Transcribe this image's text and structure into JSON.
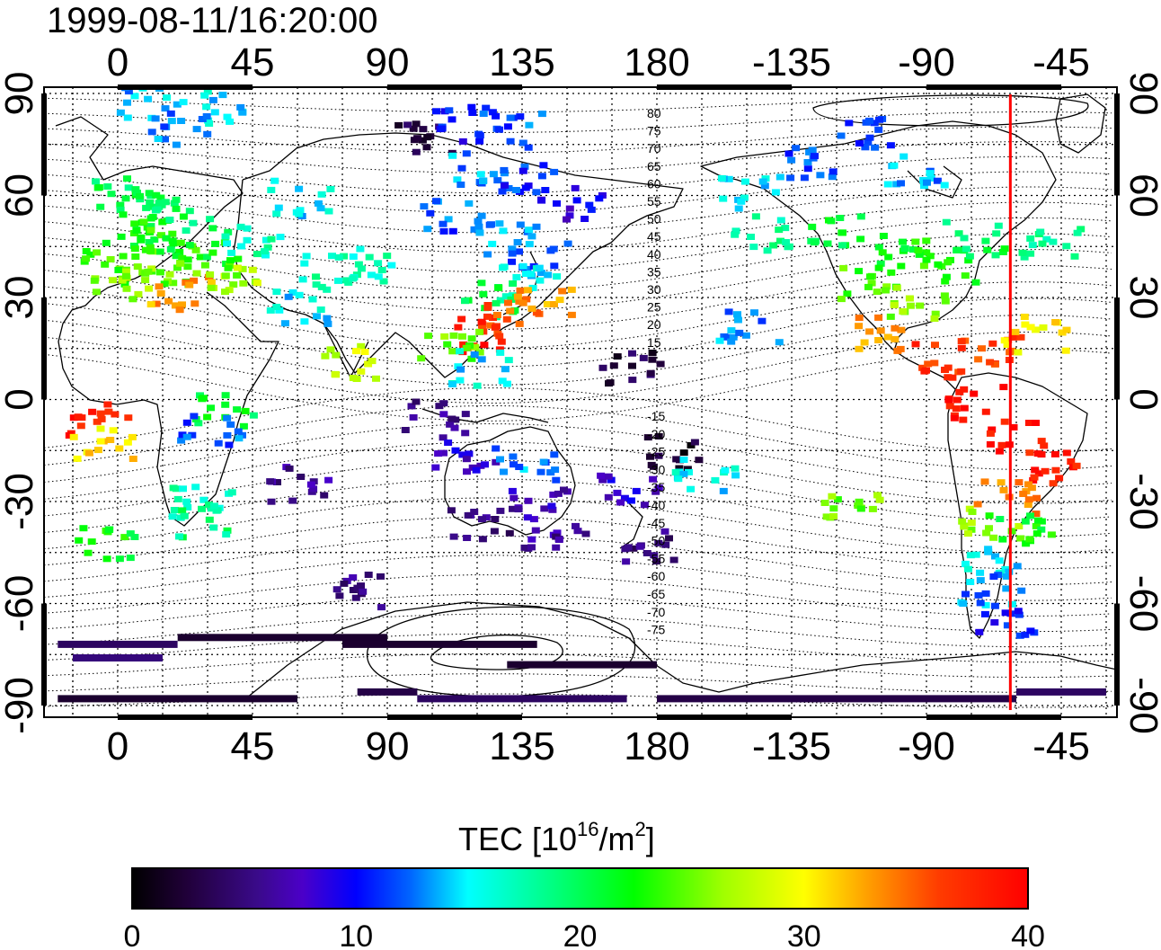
{
  "title": "1999-08-11/16:20:00",
  "axes": {
    "x_ticks": [
      "0",
      "45",
      "90",
      "135",
      "180",
      "-135",
      "-90",
      "-45"
    ],
    "y_ticks_left": [
      "90",
      "60",
      "30",
      "0",
      "-30",
      "-60",
      "-90"
    ],
    "y_ticks_right": [
      "90",
      "60",
      "30",
      "0",
      "-30",
      "-60",
      "-90"
    ]
  },
  "contour_labels_north": [
    "80",
    "75",
    "70",
    "65",
    "60",
    "55",
    "50",
    "45",
    "40",
    "35",
    "30",
    "25",
    "20",
    "15"
  ],
  "contour_labels_south": [
    "-15",
    "-20",
    "-25",
    "-30",
    "-35",
    "-40",
    "-45",
    "-50",
    "-55",
    "-60",
    "-65",
    "-70",
    "-75"
  ],
  "colorbar": {
    "label_main": "TEC  [10",
    "label_sup1": "16",
    "label_mid": "/m",
    "label_sup2": "2",
    "label_end": "]",
    "ticks": [
      "0",
      "10",
      "20",
      "30",
      "40"
    ],
    "range": [
      0,
      40
    ],
    "colors": [
      "#000000",
      "#3a0a78",
      "#4b00c8",
      "#0000ff",
      "#0078ff",
      "#00ffff",
      "#00ff78",
      "#00ff00",
      "#a0ff00",
      "#ffff00",
      "#ffa000",
      "#ff3c00",
      "#ff0000"
    ]
  },
  "terminator_longitude": -62,
  "terminator_color": "#ff0000",
  "tec_clusters": [
    {
      "lon": -8,
      "lat": -5,
      "tec": 38
    },
    {
      "lon": -6,
      "lat": -12,
      "tec": 31
    },
    {
      "lon": -4,
      "lat": -42,
      "tec": 22
    },
    {
      "lon": 10,
      "lat": 88,
      "tec": 14
    },
    {
      "lon": 30,
      "lat": 87,
      "tec": 15
    },
    {
      "lon": 20,
      "lat": 80,
      "tec": 13
    },
    {
      "lon": 0,
      "lat": 62,
      "tec": 20
    },
    {
      "lon": 10,
      "lat": 58,
      "tec": 21
    },
    {
      "lon": 20,
      "lat": 55,
      "tec": 20
    },
    {
      "lon": 5,
      "lat": 50,
      "tec": 22
    },
    {
      "lon": 15,
      "lat": 48,
      "tec": 23
    },
    {
      "lon": 25,
      "lat": 45,
      "tec": 22
    },
    {
      "lon": -5,
      "lat": 40,
      "tec": 24
    },
    {
      "lon": 10,
      "lat": 40,
      "tec": 25
    },
    {
      "lon": 30,
      "lat": 38,
      "tec": 24
    },
    {
      "lon": 0,
      "lat": 35,
      "tec": 26
    },
    {
      "lon": 20,
      "lat": 32,
      "tec": 33
    },
    {
      "lon": 35,
      "lat": 35,
      "tec": 27
    },
    {
      "lon": 45,
      "lat": 48,
      "tec": 17
    },
    {
      "lon": 60,
      "lat": 60,
      "tec": 15
    },
    {
      "lon": 70,
      "lat": 38,
      "tec": 17
    },
    {
      "lon": 60,
      "lat": 28,
      "tec": 15
    },
    {
      "lon": 80,
      "lat": 40,
      "tec": 17
    },
    {
      "lon": 78,
      "lat": 12,
      "tec": 28
    },
    {
      "lon": 35,
      "lat": -2,
      "tec": 21
    },
    {
      "lon": 30,
      "lat": -8,
      "tec": 12
    },
    {
      "lon": 27,
      "lat": -30,
      "tec": 17
    },
    {
      "lon": 25,
      "lat": -35,
      "tec": 19
    },
    {
      "lon": 60,
      "lat": -24,
      "tec": 6
    },
    {
      "lon": 80,
      "lat": -55,
      "tec": 5
    },
    {
      "lon": 100,
      "lat": 78,
      "tec": 3
    },
    {
      "lon": 115,
      "lat": 82,
      "tec": 10
    },
    {
      "lon": 130,
      "lat": 80,
      "tec": 12
    },
    {
      "lon": 120,
      "lat": 68,
      "tec": 13
    },
    {
      "lon": 135,
      "lat": 65,
      "tec": 11
    },
    {
      "lon": 150,
      "lat": 58,
      "tec": 9
    },
    {
      "lon": 110,
      "lat": 55,
      "tec": 12
    },
    {
      "lon": 130,
      "lat": 48,
      "tec": 13
    },
    {
      "lon": 140,
      "lat": 42,
      "tec": 12
    },
    {
      "lon": 135,
      "lat": 35,
      "tec": 16
    },
    {
      "lon": 125,
      "lat": 30,
      "tec": 20
    },
    {
      "lon": 130,
      "lat": 25,
      "tec": 36
    },
    {
      "lon": 140,
      "lat": 28,
      "tec": 33
    },
    {
      "lon": 120,
      "lat": 20,
      "tec": 38
    },
    {
      "lon": 110,
      "lat": 18,
      "tec": 25
    },
    {
      "lon": 120,
      "lat": 10,
      "tec": 15
    },
    {
      "lon": 105,
      "lat": -5,
      "tec": 6
    },
    {
      "lon": 115,
      "lat": -15,
      "tec": 8
    },
    {
      "lon": 120,
      "lat": -35,
      "tec": 5
    },
    {
      "lon": 140,
      "lat": -30,
      "tec": 7
    },
    {
      "lon": 145,
      "lat": -38,
      "tec": 6
    },
    {
      "lon": 135,
      "lat": -18,
      "tec": 13
    },
    {
      "lon": 170,
      "lat": -25,
      "tec": 8
    },
    {
      "lon": 175,
      "lat": -42,
      "tec": 5
    },
    {
      "lon": 185,
      "lat": -15,
      "tec": 2
    },
    {
      "lon": 170,
      "lat": 10,
      "tec": 3
    },
    {
      "lon": 195,
      "lat": -22,
      "tec": 15
    },
    {
      "lon": 210,
      "lat": 22,
      "tec": 13
    },
    {
      "lon": 215,
      "lat": 50,
      "tec": 18
    },
    {
      "lon": 210,
      "lat": 62,
      "tec": 15
    },
    {
      "lon": 230,
      "lat": 70,
      "tec": 12
    },
    {
      "lon": 250,
      "lat": 80,
      "tec": 11
    },
    {
      "lon": 265,
      "lat": 68,
      "tec": 13
    },
    {
      "lon": 240,
      "lat": 50,
      "tec": 21
    },
    {
      "lon": 260,
      "lat": 45,
      "tec": 22
    },
    {
      "lon": 275,
      "lat": 40,
      "tec": 23
    },
    {
      "lon": 250,
      "lat": 35,
      "tec": 24
    },
    {
      "lon": 265,
      "lat": 30,
      "tec": 26
    },
    {
      "lon": 285,
      "lat": 48,
      "tec": 20
    },
    {
      "lon": 255,
      "lat": 20,
      "tec": 33
    },
    {
      "lon": 275,
      "lat": 12,
      "tec": 37
    },
    {
      "lon": 290,
      "lat": 15,
      "tec": 36
    },
    {
      "lon": 285,
      "lat": 0,
      "tec": 39
    },
    {
      "lon": 300,
      "lat": -10,
      "tec": 39
    },
    {
      "lon": 310,
      "lat": -20,
      "tec": 38
    },
    {
      "lon": 295,
      "lat": -28,
      "tec": 33
    },
    {
      "lon": 290,
      "lat": -35,
      "tec": 26
    },
    {
      "lon": 300,
      "lat": -38,
      "tec": 22
    },
    {
      "lon": 292,
      "lat": -48,
      "tec": 15
    },
    {
      "lon": 290,
      "lat": -55,
      "tec": 13
    },
    {
      "lon": 295,
      "lat": -64,
      "tec": 10
    },
    {
      "lon": 245,
      "lat": -32,
      "tec": 25
    },
    {
      "lon": 305,
      "lat": 20,
      "tec": 30
    },
    {
      "lon": 310,
      "lat": 48,
      "tec": 18
    }
  ],
  "antarctic_bands": [
    {
      "lon0": -20,
      "lon1": 20,
      "lat": -72,
      "tec": 4
    },
    {
      "lon0": -15,
      "lon1": 15,
      "lat": -76,
      "tec": 5
    },
    {
      "lon0": 20,
      "lon1": 90,
      "lat": -70,
      "tec": 2
    },
    {
      "lon0": 75,
      "lon1": 140,
      "lat": -72,
      "tec": 2
    },
    {
      "lon0": 130,
      "lon1": 180,
      "lat": -78,
      "tec": 2
    },
    {
      "lon0": -20,
      "lon1": 60,
      "lat": -88,
      "tec": 2
    },
    {
      "lon0": 80,
      "lon1": 100,
      "lat": -86,
      "tec": 3
    },
    {
      "lon0": 100,
      "lon1": 170,
      "lat": -88,
      "tec": 4
    },
    {
      "lon0": 180,
      "lon1": 300,
      "lat": -88,
      "tec": 3
    },
    {
      "lon0": 300,
      "lon1": 330,
      "lat": -86,
      "tec": 4
    }
  ]
}
